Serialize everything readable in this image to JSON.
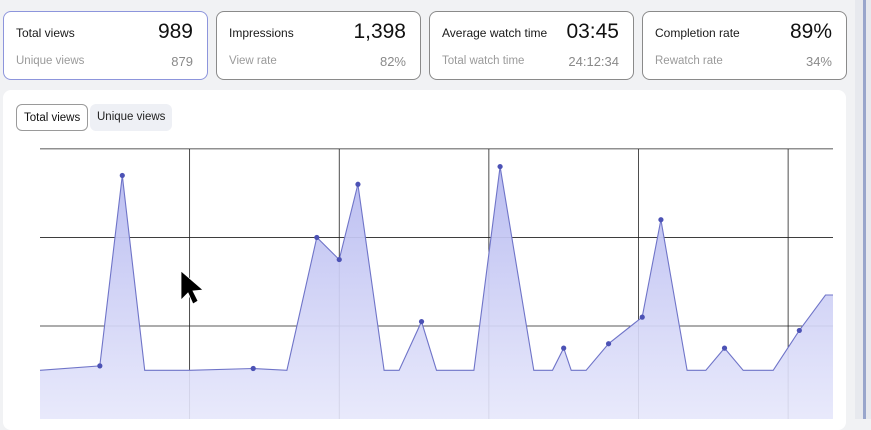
{
  "metrics": [
    {
      "title": "Total views",
      "value": "989",
      "sub_label": "Unique views",
      "sub_value": "879",
      "active": true
    },
    {
      "title": "Impressions",
      "value": "1,398",
      "sub_label": "View rate",
      "sub_value": "82%",
      "active": false
    },
    {
      "title": "Average watch time",
      "value": "03:45",
      "sub_label": "Total watch time",
      "sub_value": "24:12:34",
      "active": false
    },
    {
      "title": "Completion rate",
      "value": "89%",
      "sub_label": "Rewatch rate",
      "sub_value": "34%",
      "active": false
    }
  ],
  "chart_tabs": {
    "selected": "Total views",
    "other": "Unique views"
  },
  "colors": {
    "accent": "#8d95dc",
    "series_line": "#6f74c8",
    "series_fill": "#c7c9f3",
    "point": "#4c52b5",
    "grid": "#222222"
  },
  "cursor": "arrow-pointer-icon",
  "chart_data": {
    "type": "area",
    "series": [
      {
        "points": [
          [
            0.0,
            0
          ],
          [
            0.8,
            0.05
          ],
          [
            1.1,
            2.2
          ],
          [
            1.4,
            0
          ],
          [
            2.0,
            0
          ],
          [
            2.85,
            0.02
          ],
          [
            3.3,
            0
          ],
          [
            3.7,
            1.5
          ],
          [
            4.0,
            1.25
          ],
          [
            4.25,
            2.1
          ],
          [
            4.6,
            0
          ],
          [
            4.8,
            0
          ],
          [
            5.1,
            0.55
          ],
          [
            5.3,
            0
          ],
          [
            5.8,
            0
          ],
          [
            6.15,
            2.3
          ],
          [
            6.6,
            0
          ],
          [
            6.85,
            0
          ],
          [
            7.0,
            0.25
          ],
          [
            7.1,
            0
          ],
          [
            7.3,
            0
          ],
          [
            7.6,
            0.3
          ],
          [
            8.05,
            0.6
          ],
          [
            8.3,
            1.7
          ],
          [
            8.65,
            0
          ],
          [
            8.9,
            0
          ],
          [
            9.15,
            0.25
          ],
          [
            9.4,
            0
          ],
          [
            9.8,
            0
          ],
          [
            10.15,
            0.45
          ],
          [
            10.5,
            0.85
          ],
          [
            10.6,
            0.85
          ]
        ],
        "markers": [
          [
            0.8,
            0.05
          ],
          [
            1.1,
            2.2
          ],
          [
            2.85,
            0.02
          ],
          [
            3.7,
            1.5
          ],
          [
            4.0,
            1.25
          ],
          [
            4.25,
            2.1
          ],
          [
            5.1,
            0.55
          ],
          [
            6.15,
            2.3
          ],
          [
            7.0,
            0.25
          ],
          [
            7.6,
            0.3
          ],
          [
            8.05,
            0.6
          ],
          [
            8.3,
            1.7
          ],
          [
            9.15,
            0.25
          ],
          [
            10.15,
            0.45
          ]
        ]
      }
    ],
    "xlim": [
      0,
      10.6
    ],
    "ylim": [
      -0.55,
      2.6
    ],
    "x_gridlines": [
      2,
      4,
      6,
      8,
      10
    ],
    "y_gridlines": [
      0.5,
      1.5,
      2.5
    ],
    "grid": true,
    "legend": "none"
  }
}
